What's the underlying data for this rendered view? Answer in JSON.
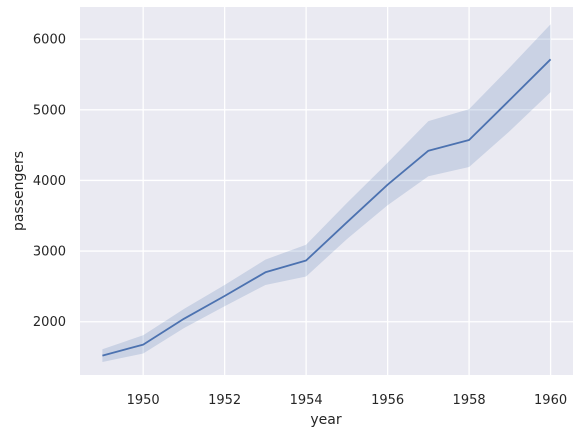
{
  "chart_data": {
    "type": "line",
    "title": "",
    "xlabel": "year",
    "ylabel": "passengers",
    "xlim": [
      1948.45,
      1960.55
    ],
    "ylim": [
      1246,
      6455
    ],
    "xticks": [
      1950,
      1952,
      1954,
      1956,
      1958,
      1960
    ],
    "yticks": [
      2000,
      3000,
      4000,
      5000,
      6000
    ],
    "grid": true,
    "background": "#eaeaf2",
    "line_color": "#4c72b0",
    "band_color": "#4c72b0",
    "series": [
      {
        "x": [
          1949,
          1950,
          1951,
          1952,
          1953,
          1954,
          1955,
          1956,
          1957,
          1958,
          1959,
          1960
        ],
        "y": [
          1520,
          1676,
          2042,
          2364,
          2700,
          2867,
          3408,
          3939,
          4421,
          4572,
          5140,
          5714
        ],
        "ci_lower": [
          1430,
          1550,
          1910,
          2220,
          2520,
          2640,
          3170,
          3650,
          4060,
          4190,
          4700,
          5250
        ],
        "ci_upper": [
          1610,
          1810,
          2180,
          2520,
          2880,
          3090,
          3680,
          4250,
          4840,
          5010,
          5600,
          6210
        ]
      }
    ]
  }
}
